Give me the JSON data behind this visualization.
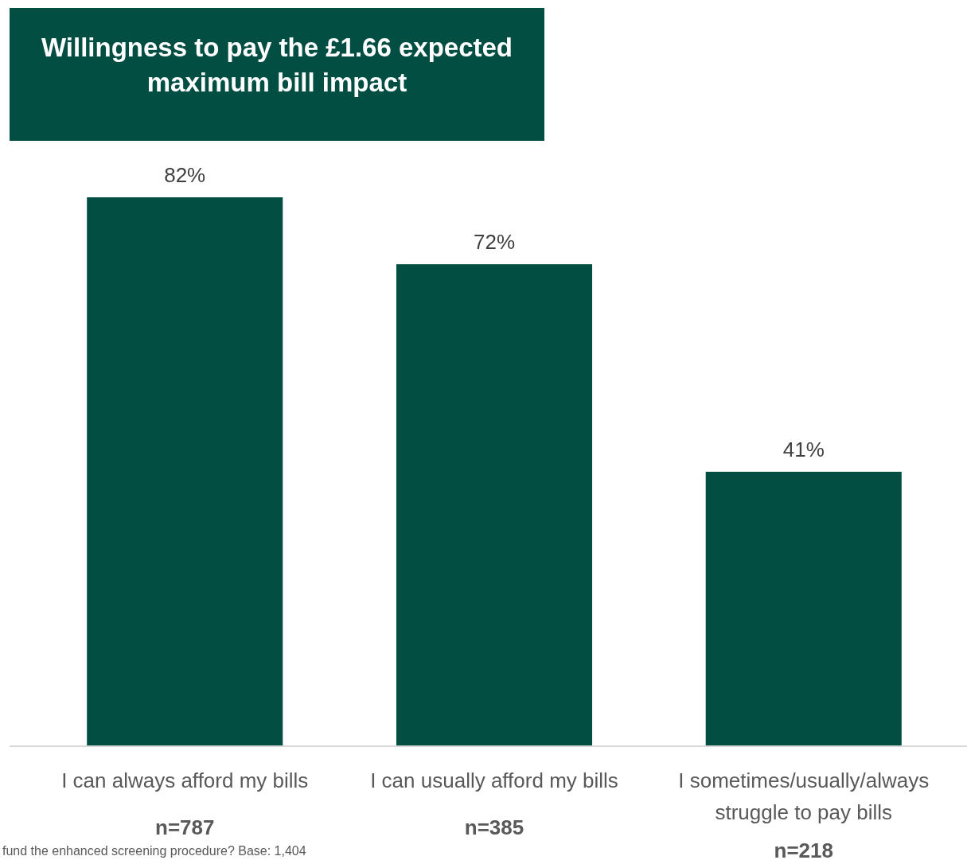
{
  "chart_data": {
    "type": "bar",
    "title": "Willingness to pay the £1.66 expected maximum bill impact",
    "categories": [
      "I can always afford my bills",
      "I can usually afford my bills",
      "I sometimes/usually/always struggle to pay bills"
    ],
    "values": [
      82,
      72,
      41
    ],
    "value_labels": [
      "82%",
      "72%",
      "41%"
    ],
    "color": "#034e42",
    "annotations": [
      "n=787",
      "n=385",
      "n=218",
      "fund the enhanced screening procedure? Base: 1,404"
    ]
  }
}
